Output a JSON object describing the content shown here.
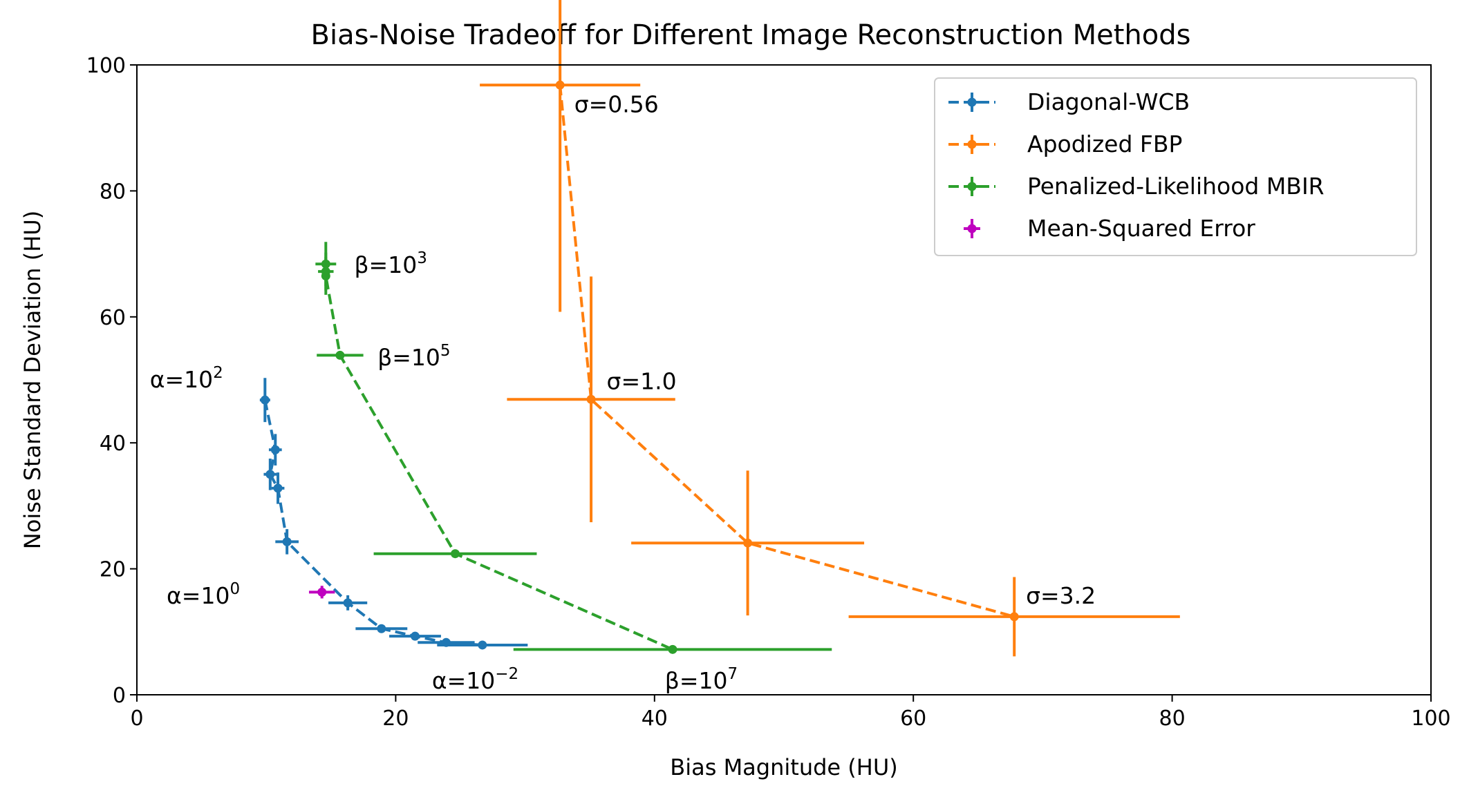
{
  "chart_data": {
    "type": "scatter",
    "title": "Bias-Noise Tradeoff for Different Image Reconstruction Methods",
    "xlabel": "Bias Magnitude (HU)",
    "ylabel": "Noise Standard Deviation (HU)",
    "xlim": [
      0,
      100
    ],
    "ylim": [
      0,
      100
    ],
    "xticks": [
      "0",
      "20",
      "40",
      "60",
      "80",
      "100"
    ],
    "yticks": [
      "0",
      "20",
      "40",
      "60",
      "80",
      "100"
    ],
    "grid": false,
    "legend_position": "top-right",
    "series": [
      {
        "name": "Diagonal-WCB",
        "color": "#1f77b4",
        "linestyle": "dashed",
        "points": [
          {
            "x": 9.9,
            "y": 46.8,
            "xerr": 0.4,
            "yerr": 3.5
          },
          {
            "x": 10.7,
            "y": 38.9,
            "xerr": 0.5,
            "yerr": 2.5
          },
          {
            "x": 10.3,
            "y": 35.0,
            "xerr": 0.5,
            "yerr": 2.5
          },
          {
            "x": 10.9,
            "y": 32.8,
            "xerr": 0.5,
            "yerr": 2.5
          },
          {
            "x": 11.6,
            "y": 24.3,
            "xerr": 0.9,
            "yerr": 2.0
          },
          {
            "x": 16.3,
            "y": 14.6,
            "xerr": 1.5,
            "yerr": 1.2
          },
          {
            "x": 18.9,
            "y": 10.5,
            "xerr": 2.0,
            "yerr": 0.6
          },
          {
            "x": 21.5,
            "y": 9.3,
            "xerr": 2.0,
            "yerr": 0.5
          },
          {
            "x": 23.9,
            "y": 8.3,
            "xerr": 2.2,
            "yerr": 0.4
          },
          {
            "x": 26.7,
            "y": 7.9,
            "xerr": 3.5,
            "yerr": 0.4
          }
        ]
      },
      {
        "name": "Apodized FBP",
        "color": "#ff7f0e",
        "linestyle": "dashed",
        "points": [
          {
            "x": 32.7,
            "y": 96.8,
            "xerr": 6.2,
            "yerr": 36.0
          },
          {
            "x": 35.1,
            "y": 46.9,
            "xerr": 6.5,
            "yerr": 19.5
          },
          {
            "x": 47.2,
            "y": 24.1,
            "xerr": 9.0,
            "yerr": 11.5
          },
          {
            "x": 67.8,
            "y": 12.4,
            "xerr": 12.8,
            "yerr": 6.3
          }
        ]
      },
      {
        "name": "Penalized-Likelihood MBIR",
        "color": "#2ca02c",
        "linestyle": "dashed",
        "points": [
          {
            "x": 14.6,
            "y": 68.4,
            "xerr": 0.8,
            "yerr": 3.5
          },
          {
            "x": 14.6,
            "y": 67.2,
            "xerr": 0.6,
            "yerr": 3.0
          },
          {
            "x": 14.6,
            "y": 66.5,
            "xerr": 0.3,
            "yerr": 3.0
          },
          {
            "x": 15.7,
            "y": 53.9,
            "xerr": 1.8,
            "yerr": 0.3
          },
          {
            "x": 24.6,
            "y": 22.4,
            "xerr": 6.3,
            "yerr": 0.3
          },
          {
            "x": 41.4,
            "y": 7.2,
            "xerr": 12.3,
            "yerr": 0.3
          }
        ]
      },
      {
        "name": "Mean-Squared Error",
        "color": "#bf00bf",
        "linestyle": "none",
        "points": [
          {
            "x": 14.3,
            "y": 16.3,
            "xerr": 1.0,
            "yerr": 1.0
          }
        ]
      }
    ],
    "annotations": [
      {
        "label": "σ=0.56",
        "x": 33.8,
        "y": 92.5
      },
      {
        "label": "σ=1.0",
        "x": 36.3,
        "y": 48.5
      },
      {
        "label": "σ=3.2",
        "x": 68.7,
        "y": 14.5
      },
      {
        "base": "β=10",
        "exp": "3",
        "x": 16.8,
        "y": 67.0
      },
      {
        "base": "β=10",
        "exp": "5",
        "x": 18.6,
        "y": 52.3
      },
      {
        "base": "β=10",
        "exp": "7",
        "x": 40.8,
        "y": 1.0
      },
      {
        "base": "α=10",
        "exp": "2",
        "x": 1.0,
        "y": 48.8
      },
      {
        "base": "α=10",
        "exp": "0",
        "x": 2.3,
        "y": 14.5
      },
      {
        "base": "α=10",
        "exp": "−2",
        "x": 22.8,
        "y": 1.0
      }
    ]
  }
}
